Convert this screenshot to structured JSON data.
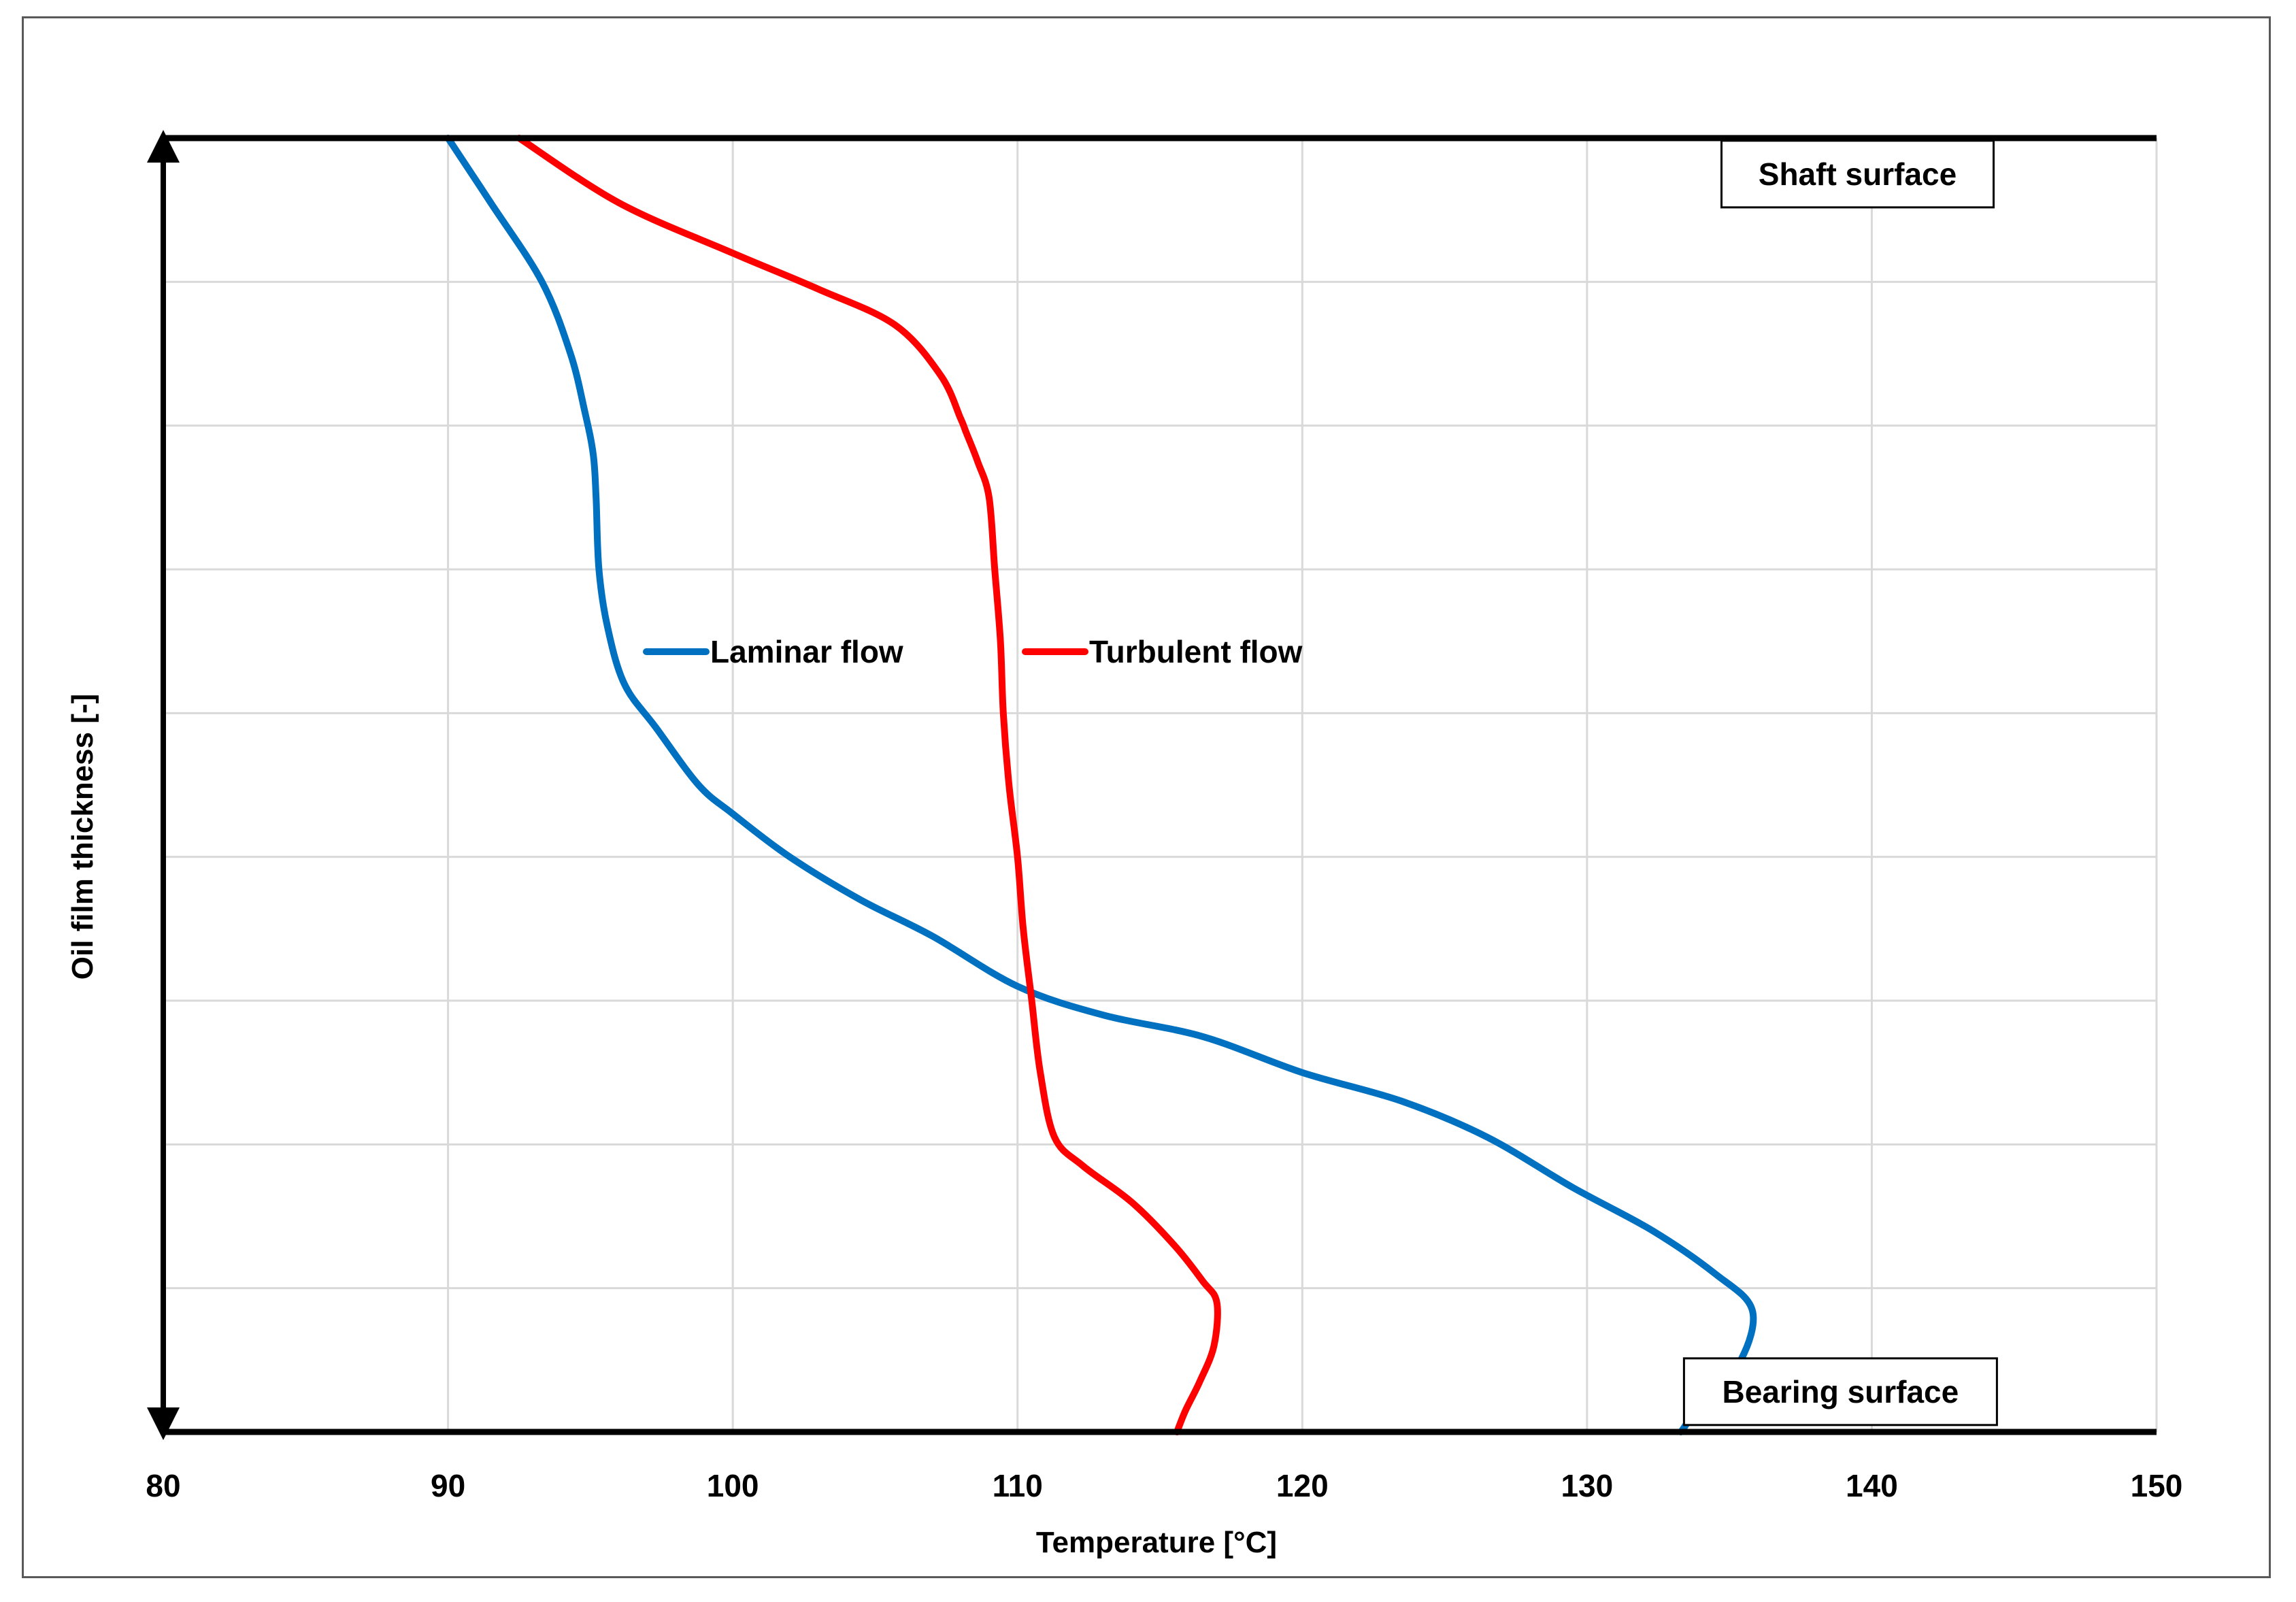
{
  "chart_data": {
    "type": "line",
    "xlabel": "Temperature [°C]",
    "ylabel": "Oil film thickness [-]",
    "xlim": [
      80,
      150
    ],
    "ylim": [
      0,
      9
    ],
    "xticks": [
      80,
      90,
      100,
      110,
      120,
      130,
      140,
      150
    ],
    "x_tick_labels": [
      "80",
      "90",
      "100",
      "110",
      "120",
      "130",
      "140",
      "150"
    ],
    "y_tick_labels_shown": false,
    "grid": true,
    "legend_position": "upper middle",
    "annotations": [
      {
        "label": "Shaft surface",
        "x": 139.5,
        "y": 8.75
      },
      {
        "label": "Bearing surface",
        "x": 138.9,
        "y": 0.28
      }
    ],
    "series": [
      {
        "name": "Laminar flow",
        "color": "#0070c0",
        "x": [
          90.0,
          91.5,
          93.3,
          94.3,
          94.8,
          95.1,
          95.2,
          95.3,
          95.6,
          96.2,
          97.3,
          98.8,
          100.0,
          102.0,
          104.5,
          107.0,
          110.0,
          113.0,
          116.5,
          120.0,
          123.5,
          126.5,
          129.5,
          132.3,
          134.5,
          135.8,
          135.4,
          134.2,
          133.3
        ],
        "y": [
          9.0,
          8.55,
          8.0,
          7.5,
          7.1,
          6.8,
          6.5,
          6.0,
          5.6,
          5.2,
          4.9,
          4.5,
          4.3,
          4.0,
          3.7,
          3.45,
          3.1,
          2.9,
          2.75,
          2.5,
          2.3,
          2.05,
          1.7,
          1.4,
          1.1,
          0.85,
          0.5,
          0.25,
          0.0
        ]
      },
      {
        "name": "Turbulent flow",
        "color": "#ff0000",
        "x": [
          92.5,
          96.0,
          100.0,
          103.0,
          105.7,
          107.3,
          108.0,
          108.2,
          108.6,
          109.0,
          109.2,
          109.4,
          109.5,
          109.7,
          110.0,
          110.2,
          110.5,
          110.8,
          111.3,
          112.3,
          114.0,
          115.5,
          116.5,
          117.0,
          116.9,
          116.4,
          115.9,
          115.6
        ],
        "y": [
          9.0,
          8.55,
          8.2,
          7.95,
          7.7,
          7.35,
          7.05,
          6.95,
          6.75,
          6.5,
          6.0,
          5.5,
          5.0,
          4.5,
          4.0,
          3.5,
          3.0,
          2.5,
          2.05,
          1.85,
          1.6,
          1.3,
          1.05,
          0.9,
          0.6,
          0.35,
          0.15,
          0.0
        ]
      }
    ]
  }
}
